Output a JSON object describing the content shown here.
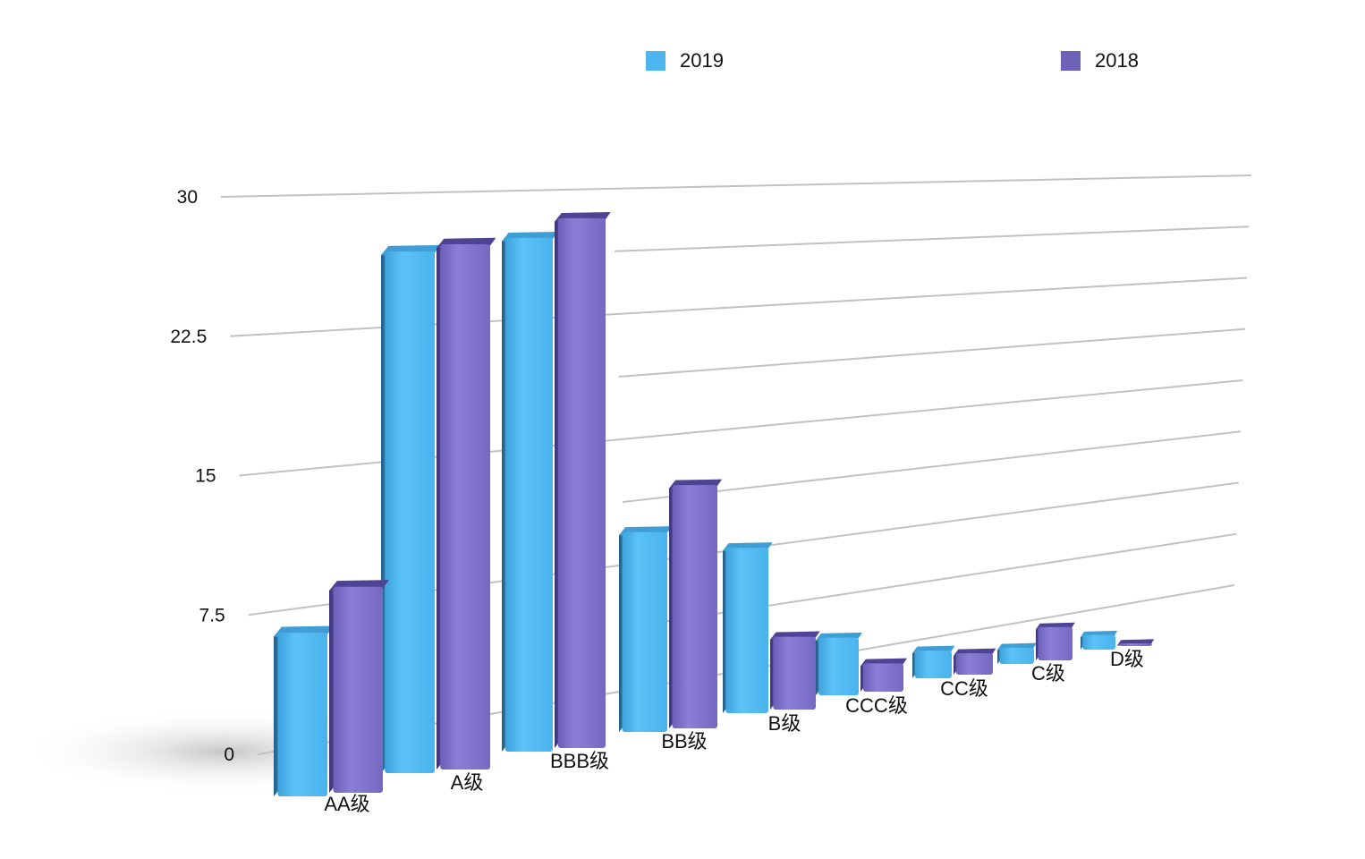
{
  "chart_data": {
    "type": "bar",
    "style": "3d-clustered",
    "categories": [
      "AA级",
      "A级",
      "BBB级",
      "BB级",
      "B级",
      "CCC级",
      "CC级",
      "C级",
      "D级"
    ],
    "series": [
      {
        "name": "2019",
        "color": "#4DB6EE",
        "values": [
          9.2,
          28.6,
          29.0,
          11.8,
          10.1,
          3.8,
          2.0,
          1.3,
          1.2
        ]
      },
      {
        "name": "2018",
        "color": "#7B6FC6",
        "values": [
          11.5,
          28.8,
          29.9,
          14.3,
          4.6,
          2.0,
          1.6,
          2.4,
          0.4
        ]
      }
    ],
    "y_ticks": [
      "0",
      "7.5",
      "15",
      "22.5",
      "30"
    ],
    "ylim": [
      0,
      30
    ],
    "grid": true,
    "legend_position": "top"
  }
}
